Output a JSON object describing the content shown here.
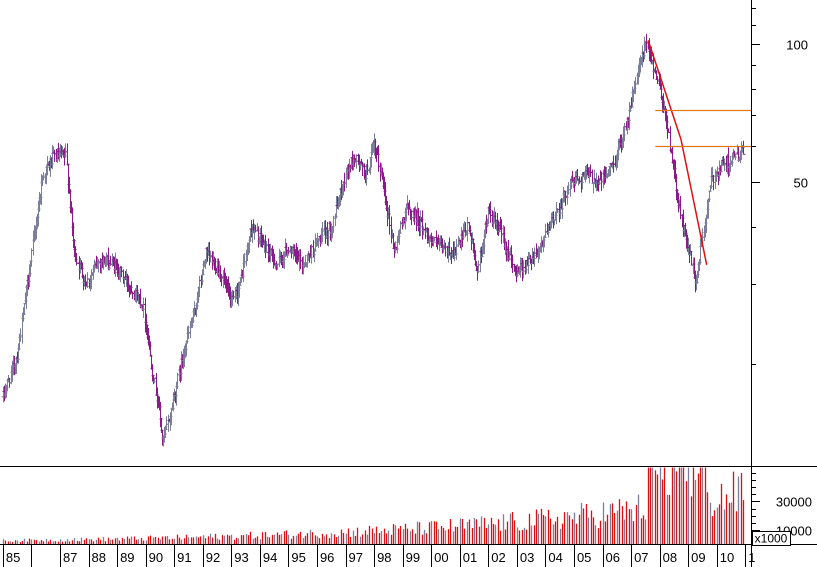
{
  "chart_data": {
    "type": "bar",
    "subtype": "ohlc-price-with-volume",
    "title": "",
    "xlabel": "",
    "ylabel": "",
    "y_scale": "log",
    "x_tick_labels": [
      "85",
      "87",
      "88",
      "89",
      "90",
      "91",
      "92",
      "93",
      "94",
      "95",
      "96",
      "97",
      "98",
      "99",
      "00",
      "01",
      "02",
      "03",
      "04",
      "05",
      "06",
      "07",
      "08",
      "09",
      "10",
      "1"
    ],
    "x_tick_years": [
      1985,
      1987,
      1988,
      1989,
      1990,
      1991,
      1992,
      1993,
      1994,
      1995,
      1996,
      1997,
      1998,
      1999,
      2000,
      2001,
      2002,
      2003,
      2004,
      2005,
      2006,
      2007,
      2008,
      2009,
      2010,
      2011
    ],
    "x_range": [
      1984.9,
      2011.2
    ],
    "price_axis": {
      "ylim": [
        12,
        125
      ],
      "tick_values": [
        50,
        100
      ],
      "tick_labels": [
        "50",
        "100"
      ]
    },
    "volume_axis": {
      "ylim": [
        0,
        55000
      ],
      "tick_values": [
        10000,
        30000
      ],
      "tick_labels": [
        "10000",
        "30000"
      ],
      "unit_label": "x1000"
    },
    "price_anchors": [
      [
        1985.0,
        17
      ],
      [
        1985.5,
        21
      ],
      [
        1986.0,
        35
      ],
      [
        1986.4,
        52
      ],
      [
        1986.8,
        57
      ],
      [
        1987.2,
        57
      ],
      [
        1987.5,
        35
      ],
      [
        1987.9,
        30
      ],
      [
        1988.4,
        34
      ],
      [
        1988.9,
        33
      ],
      [
        1989.4,
        30
      ],
      [
        1989.9,
        27
      ],
      [
        1990.2,
        20
      ],
      [
        1990.45,
        16
      ],
      [
        1990.6,
        13.5
      ],
      [
        1990.9,
        16
      ],
      [
        1991.3,
        21
      ],
      [
        1991.7,
        26
      ],
      [
        1992.1,
        35
      ],
      [
        1992.6,
        32
      ],
      [
        1993.0,
        27
      ],
      [
        1993.3,
        30
      ],
      [
        1993.7,
        40
      ],
      [
        1994.2,
        36
      ],
      [
        1994.6,
        33
      ],
      [
        1995.0,
        36
      ],
      [
        1995.5,
        33
      ],
      [
        1996.0,
        37
      ],
      [
        1996.5,
        40
      ],
      [
        1997.0,
        52
      ],
      [
        1997.3,
        57
      ],
      [
        1997.7,
        52
      ],
      [
        1998.0,
        60
      ],
      [
        1998.3,
        50
      ],
      [
        1998.7,
        35
      ],
      [
        1999.1,
        44
      ],
      [
        1999.5,
        42
      ],
      [
        1999.9,
        38
      ],
      [
        2000.3,
        36
      ],
      [
        2000.8,
        35
      ],
      [
        2001.3,
        40
      ],
      [
        2001.6,
        32
      ],
      [
        2002.0,
        43
      ],
      [
        2002.5,
        38
      ],
      [
        2002.9,
        32
      ],
      [
        2003.3,
        33
      ],
      [
        2003.8,
        36
      ],
      [
        2004.3,
        42
      ],
      [
        2004.9,
        50
      ],
      [
        2005.4,
        52
      ],
      [
        2005.9,
        50
      ],
      [
        2006.4,
        55
      ],
      [
        2006.9,
        70
      ],
      [
        2007.2,
        85
      ],
      [
        2007.5,
        100
      ],
      [
        2007.9,
        85
      ],
      [
        2008.2,
        70
      ],
      [
        2008.5,
        52
      ],
      [
        2008.8,
        40
      ],
      [
        2009.05,
        35
      ],
      [
        2009.25,
        30
      ],
      [
        2009.5,
        38
      ],
      [
        2009.8,
        50
      ],
      [
        2010.1,
        54
      ],
      [
        2010.5,
        56
      ],
      [
        2010.9,
        58
      ]
    ],
    "price_colors": [
      "#7b7f9b",
      "#8a1a8a"
    ],
    "volume_colors": [
      "#7b7f9b",
      "#dd1010"
    ],
    "annotations": [
      {
        "kind": "trendline",
        "color": "#dd1111",
        "points": [
          [
            2007.6,
            102
          ],
          [
            2008.75,
            62
          ],
          [
            2009.65,
            33
          ]
        ]
      },
      {
        "kind": "horizontal",
        "color": "#e07818",
        "x_range": [
          2007.85,
          2011.2
        ],
        "value": 72
      },
      {
        "kind": "horizontal",
        "color": "#e07818",
        "x_range": [
          2007.85,
          2011.2
        ],
        "value": 60
      }
    ]
  }
}
